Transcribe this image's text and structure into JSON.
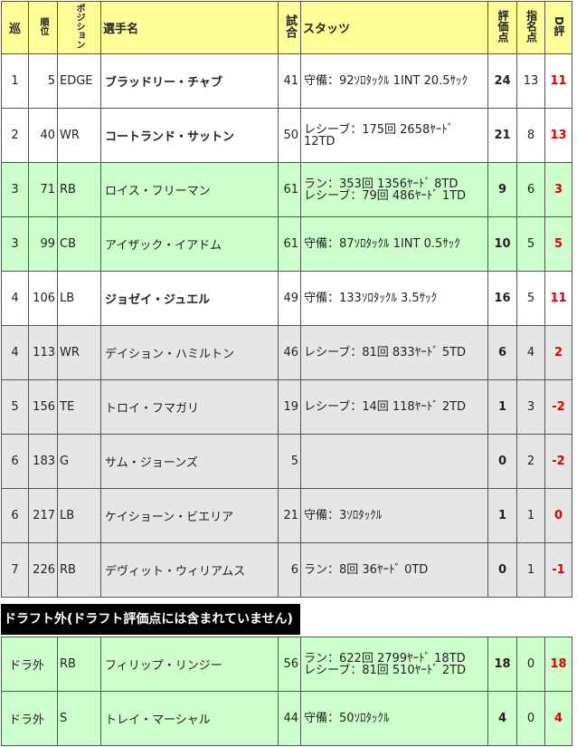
{
  "headers": {
    "round": "巡",
    "pick": "順位",
    "position": "ポジション",
    "name": "選手名",
    "games": "試合",
    "stats": "スタッツ",
    "score": "評価点",
    "nominate": "指名点",
    "d_eval": "D評"
  },
  "rows": [
    {
      "round": "1",
      "pick": "5",
      "pos": "EDGE",
      "name": "ブラッドリー・チャブ",
      "bold": true,
      "games": "41",
      "stats": [
        "守備：92ｿﾛﾀｯｸﾙ 1INT 20.5ｻｯｸ"
      ],
      "score": "24",
      "nom": "13",
      "d": "11",
      "bg": "white"
    },
    {
      "round": "2",
      "pick": "40",
      "pos": "WR",
      "name": "コートランド・サットン",
      "bold": true,
      "games": "50",
      "stats": [
        "レシーブ：175回 2658ﾔｰﾄﾞ 12TD"
      ],
      "score": "21",
      "nom": "8",
      "d": "13",
      "bg": "white"
    },
    {
      "round": "3",
      "pick": "71",
      "pos": "RB",
      "name": "ロイス・フリーマン",
      "bold": false,
      "games": "61",
      "stats": [
        "ラン：353回 1356ﾔｰﾄﾞ 8TD",
        "レシーブ：79回 486ﾔｰﾄﾞ 1TD"
      ],
      "score": "9",
      "nom": "6",
      "d": "3",
      "bg": "green"
    },
    {
      "round": "3",
      "pick": "99",
      "pos": "CB",
      "name": "アイザック・イアドム",
      "bold": false,
      "games": "61",
      "stats": [
        "守備：87ｿﾛﾀｯｸﾙ 1INT 0.5ｻｯｸ"
      ],
      "score": "10",
      "nom": "5",
      "d": "5",
      "bg": "green"
    },
    {
      "round": "4",
      "pick": "106",
      "pos": "LB",
      "name": "ジョゼイ・ジュエル",
      "bold": true,
      "games": "49",
      "stats": [
        "守備：133ｿﾛﾀｯｸﾙ 3.5ｻｯｸ"
      ],
      "score": "16",
      "nom": "5",
      "d": "11",
      "bg": "white"
    },
    {
      "round": "4",
      "pick": "113",
      "pos": "WR",
      "name": "デイション・ハミルトン",
      "bold": false,
      "games": "46",
      "stats": [
        "レシーブ：81回 833ﾔｰﾄﾞ 5TD"
      ],
      "score": "6",
      "nom": "4",
      "d": "2",
      "bg": "gray"
    },
    {
      "round": "5",
      "pick": "156",
      "pos": "TE",
      "name": "トロイ・フマガリ",
      "bold": false,
      "games": "19",
      "stats": [
        "レシーブ：14回 118ﾔｰﾄﾞ 2TD"
      ],
      "score": "1",
      "nom": "3",
      "d": "-2",
      "bg": "gray"
    },
    {
      "round": "6",
      "pick": "183",
      "pos": "G",
      "name": "サム・ジョーンズ",
      "bold": false,
      "games": "5",
      "stats": [],
      "score": "0",
      "nom": "2",
      "d": "-2",
      "bg": "gray"
    },
    {
      "round": "6",
      "pick": "217",
      "pos": "LB",
      "name": "ケイショーン・ビエリア",
      "bold": false,
      "games": "21",
      "stats": [
        "守備：3ｿﾛﾀｯｸﾙ"
      ],
      "score": "1",
      "nom": "1",
      "d": "0",
      "bg": "gray"
    },
    {
      "round": "7",
      "pick": "226",
      "pos": "RB",
      "name": "デヴィット・ウィリアムス",
      "bold": false,
      "games": "6",
      "stats": [
        "ラン：8回 36ﾔｰﾄﾞ 0TD"
      ],
      "score": "0",
      "nom": "1",
      "d": "-1",
      "bg": "gray"
    }
  ],
  "undrafted_title": "ドラフト外(ドラフト評価点には含まれていません)",
  "undrafted": [
    {
      "round": "ドラ外",
      "pos": "RB",
      "name": "フィリップ・リンジー",
      "games": "56",
      "stats": [
        "ラン：622回 2799ﾔｰﾄﾞ 18TD",
        "レシーブ：81回 510ﾔｰﾄﾞ 2TD"
      ],
      "score": "18",
      "nom": "0",
      "d": "18"
    },
    {
      "round": "ドラ外",
      "pos": "S",
      "name": "トレイ・マーシャル",
      "games": "44",
      "stats": [
        "守備：50ｿﾛﾀｯｸﾙ"
      ],
      "score": "4",
      "nom": "0",
      "d": "4"
    }
  ],
  "colors": {
    "header": "#ffff99",
    "green": "#ccffcc",
    "gray": "#e6e6e6",
    "d_eval": "#e00000"
  }
}
